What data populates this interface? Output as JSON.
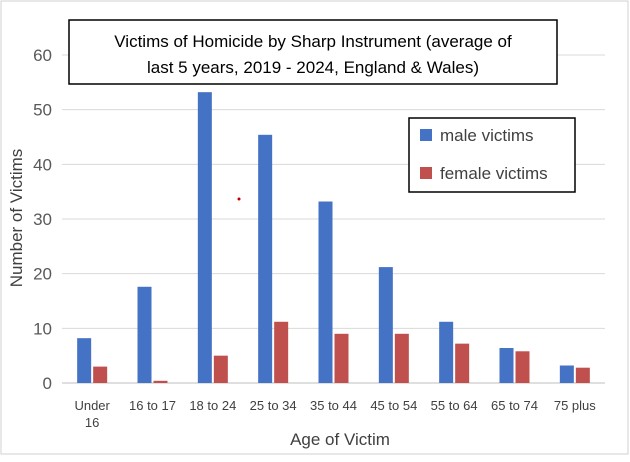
{
  "chart_data": {
    "type": "bar",
    "title_lines": [
      "Victims of Homicide by Sharp Instrument (average of",
      "last 5 years, 2019 - 2024, England & Wales)"
    ],
    "xlabel": "Age of Victim",
    "ylabel": "Number of Victims",
    "ylim": [
      0,
      60
    ],
    "yticks": [
      0,
      10,
      20,
      30,
      40,
      50,
      60
    ],
    "grid": true,
    "legend_position": "top-right",
    "categories": [
      [
        "Under",
        "16"
      ],
      [
        "16 to 17"
      ],
      [
        "18 to 24"
      ],
      [
        "25 to 34"
      ],
      [
        "35 to 44"
      ],
      [
        "45 to 54"
      ],
      [
        "55 to 64"
      ],
      [
        "65 to 74"
      ],
      [
        "75 plus"
      ]
    ],
    "series": [
      {
        "name": "male victims",
        "color": "#4472C4",
        "values": [
          8.2,
          17.6,
          53.2,
          45.4,
          33.2,
          21.2,
          11.2,
          6.4,
          3.2
        ]
      },
      {
        "name": "female victims",
        "color": "#C0504D",
        "values": [
          3.0,
          0.4,
          5.0,
          11.2,
          9.0,
          9.0,
          7.2,
          5.8,
          2.8
        ]
      }
    ]
  }
}
